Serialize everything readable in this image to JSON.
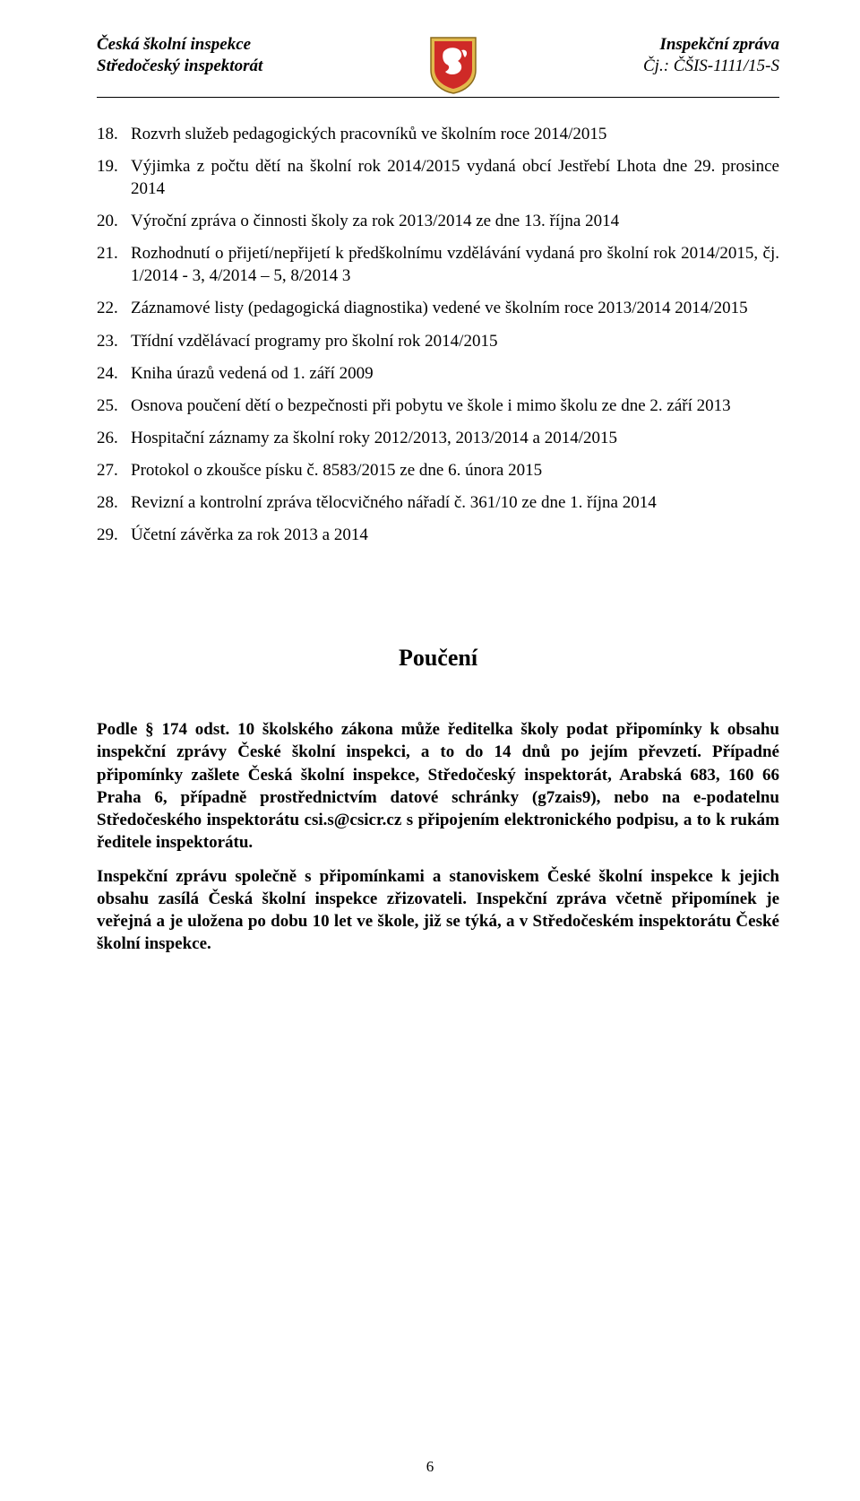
{
  "header": {
    "left_line1": "Česká školní inspekce",
    "left_line2": "Středočeský inspektorát",
    "right_line1": "Inspekční zpráva",
    "right_line2": "Čj.: ČŠIS-1111/15-S"
  },
  "list_start": 18,
  "list_items": [
    "Rozvrh služeb pedagogických pracovníků ve školním roce 2014/2015",
    "Výjimka z počtu dětí na školní rok 2014/2015 vydaná obcí Jestřebí Lhota dne 29. prosince 2014",
    "Výroční zpráva o činnosti školy za rok 2013/2014 ze dne 13. října 2014",
    "Rozhodnutí o přijetí/nepřijetí k předškolnímu vzdělávání vydaná pro školní rok 2014/2015, čj. 1/2014 - 3, 4/2014 – 5, 8/2014 3",
    "Záznamové listy (pedagogická diagnostika) vedené ve školním roce 2013/2014 2014/2015",
    "Třídní vzdělávací programy pro školní rok 2014/2015",
    "Kniha úrazů vedená od 1. září 2009",
    "Osnova poučení dětí o bezpečnosti při pobytu ve škole i mimo školu ze dne 2. září 2013",
    "Hospitační záznamy za školní roky 2012/2013, 2013/2014 a 2014/2015",
    "Protokol o zkoušce písku č. 8583/2015 ze dne 6. února 2015",
    "Revizní a kontrolní zpráva tělocvičného nářadí č. 361/10 ze dne 1. října 2014",
    "Účetní závěrka za rok 2013 a 2014"
  ],
  "section_heading": "Poučení",
  "paragraphs": [
    "Podle § 174 odst. 10 školského zákona může ředitelka školy podat připomínky k obsahu inspekční zprávy České školní inspekci, a to do 14 dnů po jejím převzetí. Případné připomínky zašlete Česká školní inspekce, Středočeský inspektorát, Arabská 683, 160 66 Praha 6, případně prostřednictvím datové schránky (g7zais9), nebo na e-podatelnu Středočeského inspektorátu csi.s@csicr.cz s připojením elektronického podpisu, a to k rukám ředitele inspektorátu.",
    "Inspekční zprávu společně s připomínkami a stanoviskem České školní inspekce k jejich obsahu zasílá Česká školní inspekce zřizovateli. Inspekční zpráva včetně připomínek je veřejná a je uložena po dobu 10 let ve škole, již se týká, a v Středočeském inspektorátu České školní inspekce."
  ],
  "page_number": "6"
}
